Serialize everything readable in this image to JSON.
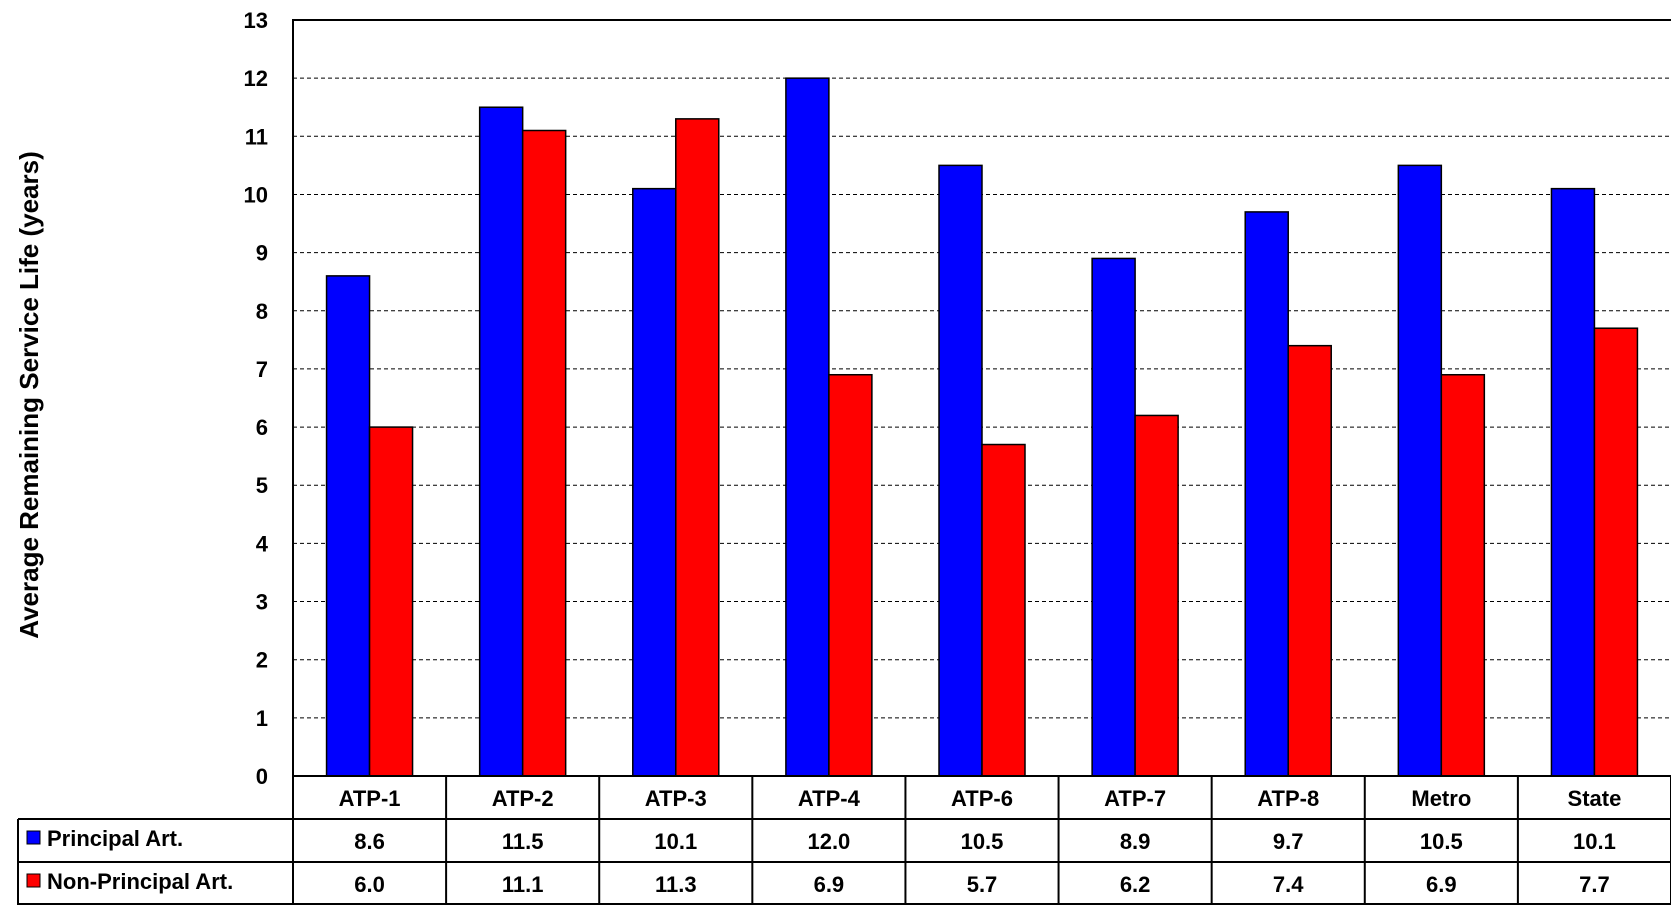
{
  "chart_data": {
    "type": "bar",
    "title": "",
    "xlabel": "",
    "ylabel": "Average Remaining Service Life (years)",
    "ylim": [
      0,
      13
    ],
    "yticks": [
      0,
      1,
      2,
      3,
      4,
      5,
      6,
      7,
      8,
      9,
      10,
      11,
      12,
      13
    ],
    "grid": true,
    "legend": "data-table",
    "categories": [
      "ATP-1",
      "ATP-2",
      "ATP-3",
      "ATP-4",
      "ATP-6",
      "ATP-7",
      "ATP-8",
      "Metro",
      "State"
    ],
    "series": [
      {
        "name": "Principal Art.",
        "color": "#0000ff",
        "values": [
          8.6,
          11.5,
          10.1,
          12.0,
          10.5,
          8.9,
          9.7,
          10.5,
          10.1
        ],
        "labels": [
          "8.6",
          "11.5",
          "10.1",
          "12.0",
          "10.5",
          "8.9",
          "9.7",
          "10.5",
          "10.1"
        ]
      },
      {
        "name": "Non-Principal Art.",
        "color": "#ff0000",
        "values": [
          6.0,
          11.1,
          11.3,
          6.9,
          5.7,
          6.2,
          7.4,
          6.9,
          7.7
        ],
        "labels": [
          "6.0",
          "11.1",
          "11.3",
          "6.9",
          "5.7",
          "6.2",
          "7.4",
          "6.9",
          "7.7"
        ]
      }
    ]
  }
}
